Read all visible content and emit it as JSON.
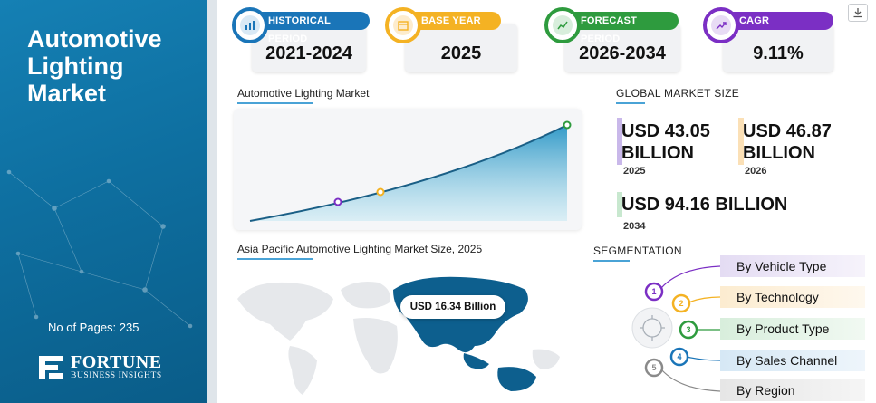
{
  "left_panel": {
    "title": "Automotive\nLighting\nMarket",
    "pages": "No of Pages: 235",
    "logo_brand": "FORTUNE",
    "logo_sub": "BUSINESS INSIGHTS"
  },
  "periods": [
    {
      "label": "HISTORICAL PERIOD",
      "value": "2021-2024",
      "color": "#1a75b8",
      "icon": "bar-chart-icon"
    },
    {
      "label": "BASE YEAR",
      "value": "2025",
      "color": "#f4b223",
      "icon": "calendar-icon"
    },
    {
      "label": "FORECAST PERIOD",
      "value": "2026-2034",
      "color": "#2e9b3e",
      "icon": "forecast-chart-icon"
    },
    {
      "label": "CAGR",
      "value": "9.11%",
      "color": "#7b2fc4",
      "icon": "growth-chart-icon"
    }
  ],
  "chart": {
    "title": "Automotive Lighting Market",
    "curve_color": "#1a5f86",
    "points": [
      {
        "color": "#7b2fc4"
      },
      {
        "color": "#f4b223"
      },
      {
        "color": "#2e9b3e"
      }
    ]
  },
  "global_market": {
    "title": "GLOBAL MARKET SIZE",
    "items": [
      {
        "value_line1": "USD 43.05",
        "value_line2": "BILLION",
        "year": "2025",
        "color": "#c9b8ea"
      },
      {
        "value_line1": "USD 46.87",
        "value_line2": "BILLION",
        "year": "2026",
        "color": "#fbe0b6"
      },
      {
        "value_line1": "USD 94.16 BILLION",
        "year": "2034",
        "color": "#c8e8cf"
      }
    ]
  },
  "asia_pacific": {
    "title": "Asia Pacific Automotive Lighting Market Size, 2025",
    "callout": "USD 16.34 Billion",
    "highlight_color": "#0d5f8e"
  },
  "segmentation": {
    "title": "SEGMENTATION",
    "items": [
      {
        "num": "1",
        "label": "By Vehicle Type",
        "color": "#7b2fc4",
        "bg": "#ece6f6"
      },
      {
        "num": "2",
        "label": "By Technology",
        "color": "#f4b223",
        "bg": "#fdf3e0"
      },
      {
        "num": "3",
        "label": "By Product Type",
        "color": "#2e9b3e",
        "bg": "#e4f3e6"
      },
      {
        "num": "4",
        "label": "By Sales Channel",
        "color": "#1a75b8",
        "bg": "#e1eef7"
      },
      {
        "num": "5",
        "label": "By Region",
        "color": "#8a8a8a",
        "bg": "#eeeeee"
      }
    ]
  }
}
